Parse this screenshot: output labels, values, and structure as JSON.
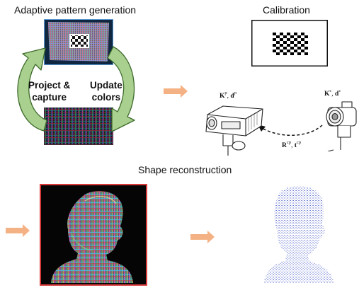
{
  "headings": {
    "adaptive": "Adaptive pattern generation",
    "calibration": "Calibration",
    "shape": "Shape reconstruction"
  },
  "cycle": {
    "left_line1": "Project &",
    "left_line2": "capture",
    "right_line1": "Update",
    "right_line2": "colors"
  },
  "calibration_params": {
    "projector": {
      "K": "K",
      "K_sup": "p",
      "sep": ", ",
      "d": "d",
      "d_sup": "p"
    },
    "camera": {
      "K": "K",
      "K_sup": "c",
      "sep": ", ",
      "d": "d",
      "d_sup": "c"
    },
    "extrinsic": {
      "R": "R",
      "R_sup": "cp",
      "sep": ", ",
      "t": "t",
      "t_sup": "cp"
    }
  },
  "colors": {
    "cycle_arrow_fill": "#a9d08e",
    "cycle_arrow_stroke": "#3e6b2c",
    "flow_arrow": "#f4b183",
    "pattern_frame": "#5b9bd5",
    "photo_frame": "#d83a3a",
    "point_cloud": "#2a3fc0"
  },
  "icons": [
    "adaptive-pattern-icon",
    "color-stripe-pattern-icon",
    "checkerboard-icon",
    "projector-icon",
    "camera-icon",
    "projected-bust-photo",
    "point-cloud-icon"
  ]
}
